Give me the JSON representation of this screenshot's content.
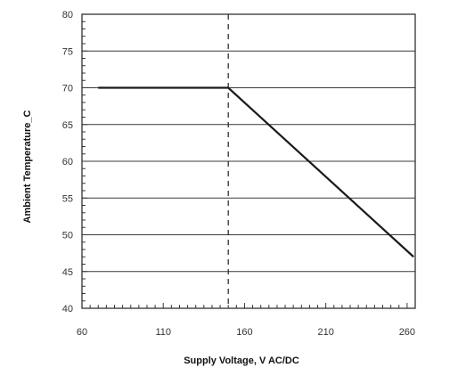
{
  "chart_data": {
    "type": "line",
    "title": "",
    "xlabel": "Supply Voltage, V AC/DC",
    "ylabel": "Ambient Temperature_C",
    "xlim": [
      60,
      265
    ],
    "ylim": [
      40,
      80
    ],
    "x_ticks": [
      60,
      110,
      160,
      210,
      260
    ],
    "y_ticks": [
      40,
      45,
      50,
      55,
      60,
      65,
      70,
      75,
      80
    ],
    "y_grid": true,
    "x_minor_step": 5,
    "y_minor_step": 1,
    "series": [
      {
        "x": [
          70,
          150,
          264
        ],
        "y": [
          70,
          70,
          47
        ],
        "color": "#1a1a1a"
      }
    ],
    "reference_lines": [
      {
        "orientation": "vertical",
        "x": 150,
        "style": "dashed"
      }
    ]
  }
}
